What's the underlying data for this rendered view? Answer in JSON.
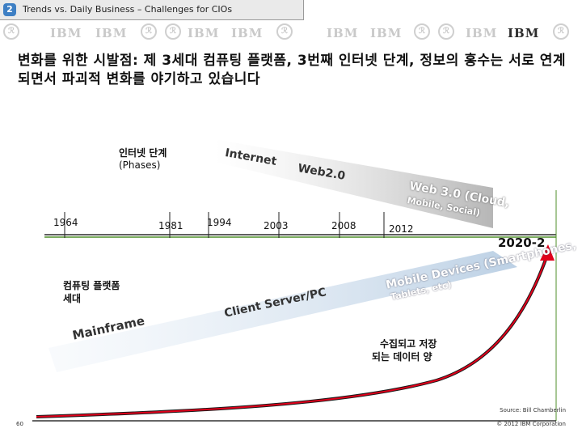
{
  "header": {
    "chapter_number": "2",
    "chapter_title": "Trends vs. Daily Business – Challenges for CIOs"
  },
  "logo_strip": {
    "brand": "IBM",
    "seal_glyph": "ℛ"
  },
  "headline": "변화를 위한 시발점: 제 3세대 컴퓨팅 플랫폼, 3번째 인터넷 단계, 정보의 홍수는 서로 연계되면서 파괴적 변화를 야기하고 있습니다",
  "diagram": {
    "phases_label_ko": "인터넷 단계",
    "phases_label_en": "(Phases)",
    "internet_phases": [
      "Internet",
      "Web2.0",
      "Web 3.0 (Cloud,",
      "Mobile, Social)"
    ],
    "timeline_years": [
      "1964",
      "1981",
      "1994",
      "2003",
      "2008",
      "2012",
      "2020-2"
    ],
    "computing_label_1": "컴퓨팅 플랫폼",
    "computing_label_2": "세대",
    "platform_generations": [
      "Mainframe",
      "Client Server/PC",
      "Mobile Devices (Smartphones,",
      "Tablets, etc)"
    ],
    "data_label_1": "수집되고 저장",
    "data_label_2": "되는 데이터 양"
  },
  "footer": {
    "source": "Source: Bill Chamberlin",
    "copyright": "© 2012 IBM Corporation",
    "page_number": "60"
  },
  "colors": {
    "accent_red": "#e1001a",
    "badge_blue": "#3d7fc4",
    "curve_dark": "#1a1a1a",
    "axis_green": "#4f8f2a"
  }
}
